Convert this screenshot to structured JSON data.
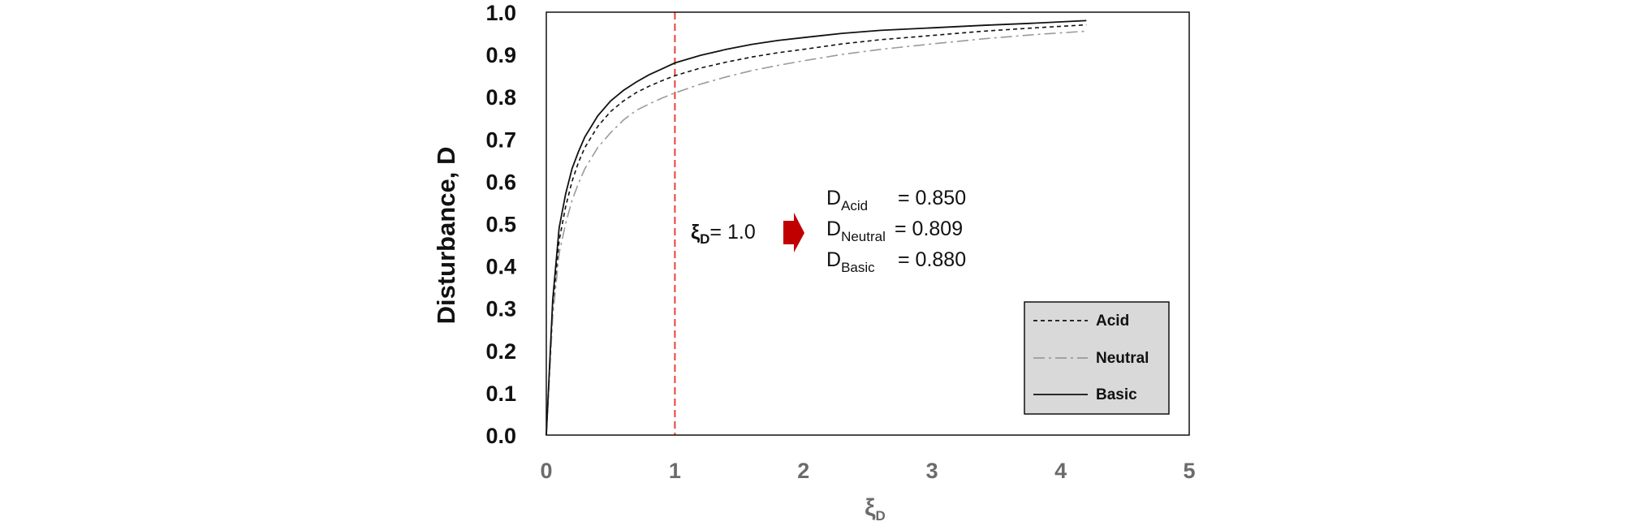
{
  "chart_data": {
    "type": "line",
    "xlabel": {
      "main": "ξ",
      "sub": "D"
    },
    "ylabel": "Disturbance, D",
    "xlim": [
      0,
      5
    ],
    "ylim": [
      0,
      1.0
    ],
    "xticks": [
      "0",
      "1",
      "2",
      "3",
      "4",
      "5"
    ],
    "yticks": [
      "0.0",
      "0.1",
      "0.2",
      "0.3",
      "0.4",
      "0.5",
      "0.6",
      "0.7",
      "0.8",
      "0.9",
      "1.0"
    ],
    "grid": false,
    "legend_position": "bottom-right",
    "colors": {
      "reference_line": "#e8423a",
      "arrow": "#c00000",
      "legend_bg": "#d9d9d9",
      "axis": "#111111"
    },
    "reference_line": {
      "x": 1.0
    },
    "annotation": {
      "xi_main": "ξ",
      "xi_sub": "D",
      "xi_value": "= 1.0",
      "rows": [
        {
          "main": "D",
          "sub": "Acid",
          "value": "= 0.850"
        },
        {
          "main": "D",
          "sub": "Neutral",
          "value": "= 0.809"
        },
        {
          "main": "D",
          "sub": "Basic",
          "value": "= 0.880"
        }
      ]
    },
    "series": [
      {
        "name": "Acid",
        "style": "dashed",
        "color": "#111111",
        "x": [
          0,
          0.05,
          0.1,
          0.15,
          0.2,
          0.25,
          0.3,
          0.4,
          0.5,
          0.6,
          0.7,
          0.8,
          0.9,
          1.0,
          1.2,
          1.4,
          1.6,
          1.8,
          2.0,
          2.3,
          2.6,
          3.0,
          3.4,
          3.8,
          4.2
        ],
        "y": [
          0,
          0.3,
          0.46,
          0.54,
          0.6,
          0.645,
          0.68,
          0.73,
          0.765,
          0.79,
          0.81,
          0.825,
          0.838,
          0.85,
          0.868,
          0.882,
          0.894,
          0.904,
          0.912,
          0.925,
          0.935,
          0.945,
          0.955,
          0.963,
          0.97
        ]
      },
      {
        "name": "Neutral",
        "style": "dashdot",
        "color": "#9a9a9a",
        "x": [
          0,
          0.05,
          0.1,
          0.15,
          0.2,
          0.25,
          0.3,
          0.4,
          0.5,
          0.6,
          0.7,
          0.8,
          0.9,
          1.0,
          1.2,
          1.4,
          1.6,
          1.8,
          2.0,
          2.3,
          2.6,
          3.0,
          3.4,
          3.8,
          4.2
        ],
        "y": [
          0,
          0.28,
          0.43,
          0.5,
          0.555,
          0.595,
          0.63,
          0.68,
          0.715,
          0.745,
          0.768,
          0.783,
          0.797,
          0.809,
          0.83,
          0.847,
          0.862,
          0.874,
          0.885,
          0.9,
          0.912,
          0.925,
          0.937,
          0.947,
          0.955
        ]
      },
      {
        "name": "Basic",
        "style": "solid",
        "color": "#111111",
        "x": [
          0,
          0.05,
          0.1,
          0.15,
          0.2,
          0.25,
          0.3,
          0.4,
          0.5,
          0.6,
          0.7,
          0.8,
          0.9,
          1.0,
          1.2,
          1.4,
          1.6,
          1.8,
          2.0,
          2.3,
          2.6,
          3.0,
          3.4,
          3.8,
          4.2
        ],
        "y": [
          0,
          0.32,
          0.49,
          0.57,
          0.63,
          0.67,
          0.705,
          0.755,
          0.79,
          0.815,
          0.835,
          0.852,
          0.866,
          0.88,
          0.898,
          0.912,
          0.924,
          0.933,
          0.94,
          0.95,
          0.957,
          0.963,
          0.969,
          0.974,
          0.98
        ]
      }
    ]
  }
}
